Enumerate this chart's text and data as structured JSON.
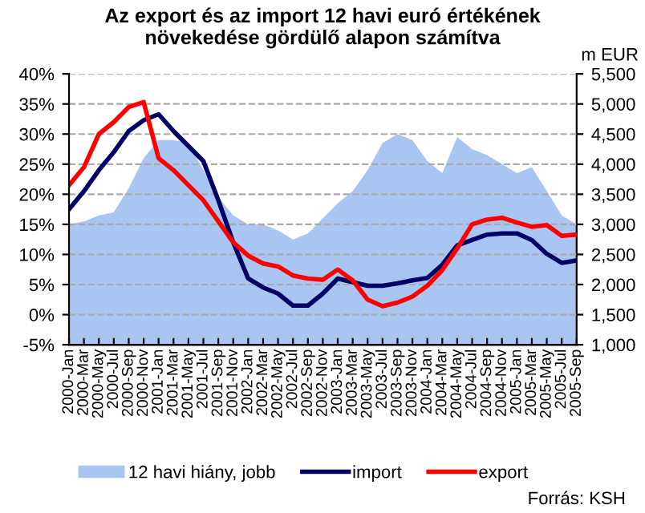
{
  "chart_data": {
    "type": "line",
    "title": "Az export és az import 12 havi euró értékének\nnövekedése gördülő alapon számítva",
    "y2label": "m EUR",
    "categories": [
      "2000-Jan",
      "2000-Mar",
      "2000-May",
      "2000-Jul",
      "2000-Sep",
      "2000-Nov",
      "2001-Jan",
      "2001-Mar",
      "2001-May",
      "2001-Jul",
      "2001-Sep",
      "2001-Nov",
      "2002-Jan",
      "2002-Mar",
      "2002-May",
      "2002-Jul",
      "2002-Sep",
      "2002-Nov",
      "2003-Jan",
      "2003-Mar",
      "2003-May",
      "2003-Jul",
      "2003-Sep",
      "2003-Nov",
      "2004-Jan",
      "2004-Mar",
      "2004-May",
      "2004-Jul",
      "2004-Sep",
      "2004-Nov",
      "2005-Jan",
      "2005-Mar",
      "2005-May",
      "2005-Jul",
      "2005-Sep"
    ],
    "series": [
      {
        "name": "12 havi hiány, jobb",
        "type": "area",
        "axis": "y2",
        "color": "#a9c6f2",
        "values": [
          3000,
          3050,
          3150,
          3200,
          3600,
          4100,
          4400,
          4400,
          4350,
          3900,
          3450,
          3150,
          3000,
          3000,
          2900,
          2750,
          2850,
          3100,
          3350,
          3550,
          3900,
          4350,
          4500,
          4400,
          4050,
          3850,
          4450,
          4250,
          4150,
          4000,
          3850,
          3950,
          3550,
          3150,
          3000
        ]
      },
      {
        "name": "import",
        "color": "#000066",
        "values": [
          17.5,
          20.5,
          24,
          27,
          30.5,
          32.3,
          33.3,
          30.5,
          28,
          25.5,
          19,
          12,
          6,
          4.5,
          3.5,
          1.5,
          1.5,
          3.5,
          6,
          5.4,
          4.8,
          4.8,
          5.2,
          5.7,
          6.1,
          8.3,
          11.5,
          12.4,
          13.3,
          13.5,
          13.5,
          12.4,
          10.1,
          8.6,
          9
        ]
      },
      {
        "name": "export",
        "color": "#ff0000",
        "values": [
          21.5,
          24.5,
          30,
          32,
          34.5,
          35.3,
          26,
          24,
          21.5,
          19,
          15.5,
          12,
          9.8,
          8.5,
          8,
          6.5,
          6,
          5.8,
          7.5,
          5.7,
          2.5,
          1.4,
          2,
          3,
          4.8,
          7.4,
          11,
          15,
          15.8,
          16.1,
          15.3,
          14.6,
          14.9,
          13.1,
          13.3
        ]
      }
    ],
    "ylim": [
      -5,
      40
    ],
    "yticks": [
      {
        "value": -5,
        "label": "-5%"
      },
      {
        "value": 0,
        "label": "0%"
      },
      {
        "value": 5,
        "label": "5%"
      },
      {
        "value": 10,
        "label": "10%"
      },
      {
        "value": 15,
        "label": "15%"
      },
      {
        "value": 20,
        "label": "20%"
      },
      {
        "value": 25,
        "label": "25%"
      },
      {
        "value": 30,
        "label": "30%"
      },
      {
        "value": 35,
        "label": "35%"
      },
      {
        "value": 40,
        "label": "40%"
      }
    ],
    "y2lim": [
      1000,
      5500
    ],
    "y2ticks": [
      {
        "value": 1000,
        "label": "1,000"
      },
      {
        "value": 1500,
        "label": "1,500"
      },
      {
        "value": 2000,
        "label": "2,000"
      },
      {
        "value": 2500,
        "label": "2,500"
      },
      {
        "value": 3000,
        "label": "3,000"
      },
      {
        "value": 3500,
        "label": "3,500"
      },
      {
        "value": 4000,
        "label": "4,000"
      },
      {
        "value": 4500,
        "label": "4,500"
      },
      {
        "value": 5000,
        "label": "5,000"
      },
      {
        "value": 5500,
        "label": "5,500"
      }
    ],
    "grid": "y",
    "legend": "bottom",
    "line_style": "solid",
    "marker": "none",
    "annotations": [
      "Forrás: KSH"
    ]
  }
}
